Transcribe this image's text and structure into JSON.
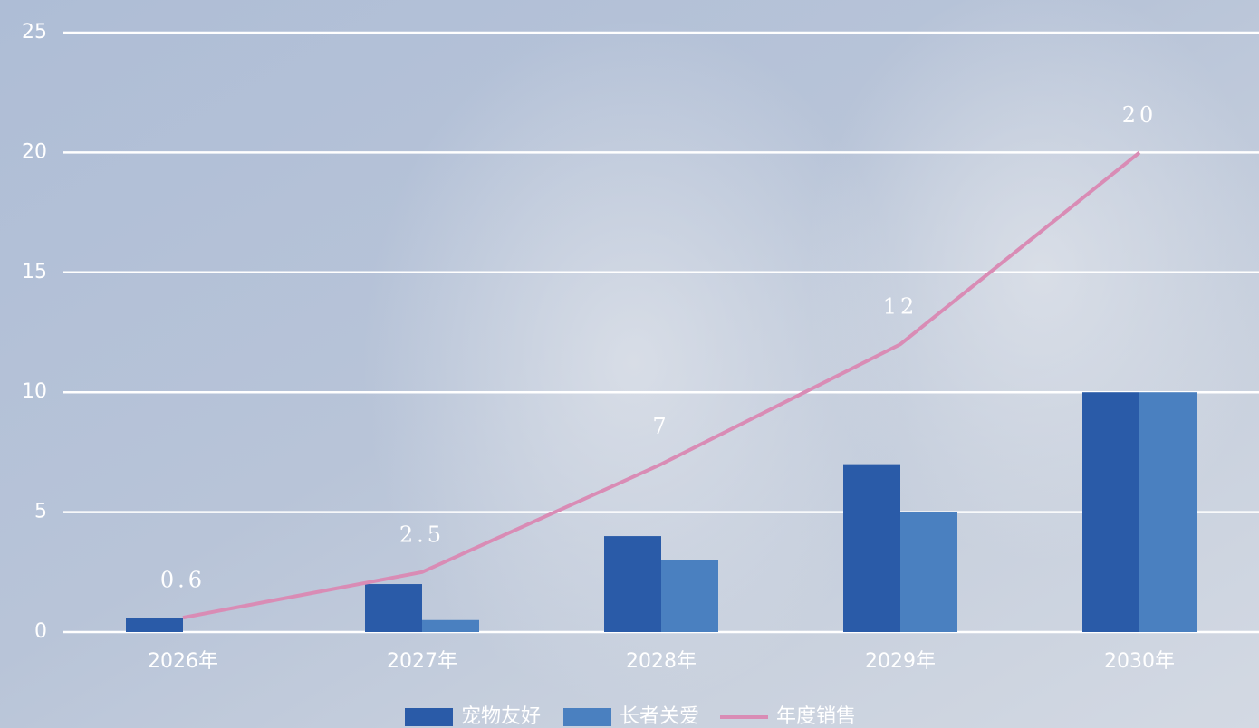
{
  "chart_data": {
    "type": "bar",
    "categories": [
      "2026年",
      "2027年",
      "2028年",
      "2029年",
      "2030年"
    ],
    "series": [
      {
        "name": "宠物友好",
        "type": "bar",
        "color": "#2a5ba8",
        "values": [
          0.6,
          2,
          4,
          7,
          10
        ]
      },
      {
        "name": "长者关爱",
        "type": "bar",
        "color": "#4a80c0",
        "values": [
          0,
          0.5,
          3,
          5,
          10
        ]
      },
      {
        "name": "年度销售",
        "type": "line",
        "color": "#d98cb5",
        "values": [
          0.6,
          2.5,
          7,
          12,
          20
        ],
        "data_labels": true
      }
    ],
    "ylim": [
      0,
      25
    ],
    "yticks": [
      0,
      5,
      10,
      15,
      20,
      25
    ],
    "grid": true,
    "legend": "bottom"
  }
}
